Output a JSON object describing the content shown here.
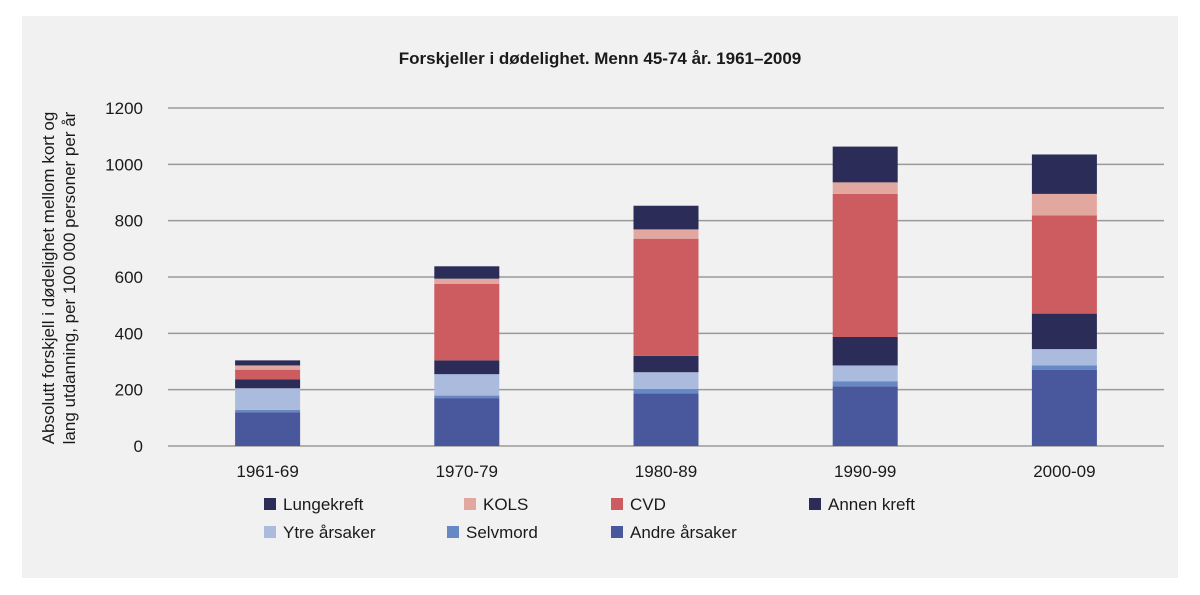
{
  "chart_data": {
    "type": "bar",
    "stacked": true,
    "title": "Forskjeller i dødelighet. Menn 45-74 år. 1961–2009",
    "xlabel": "",
    "ylabel_lines": [
      "Absolutt forskjell i dødelighet mellom kort og",
      "lang utdanning, per 100 000 personer per år"
    ],
    "ylim": [
      0,
      1200
    ],
    "yticks": [
      "0",
      "200",
      "400",
      "600",
      "800",
      "1000",
      "1200"
    ],
    "grid": true,
    "legend_position": "bottom",
    "categories": [
      "1961-69",
      "1970-79",
      "1980-89",
      "1990-99",
      "2000-09"
    ],
    "series": [
      {
        "name": "Andre årsaker",
        "color": "#49579c",
        "values": [
          120,
          170,
          187,
          212,
          270
        ]
      },
      {
        "name": "Selvmord",
        "color": "#6688c4",
        "values": [
          8,
          9,
          16,
          18,
          16
        ]
      },
      {
        "name": "Ytre årsaker",
        "color": "#aabbdd",
        "values": [
          77,
          76,
          59,
          56,
          58
        ]
      },
      {
        "name": "Annen kreft",
        "color": "#2b2d58",
        "values": [
          32,
          49,
          58,
          101,
          126
        ]
      },
      {
        "name": "CVD",
        "color": "#cd5c60",
        "values": [
          34,
          272,
          416,
          508,
          349
        ]
      },
      {
        "name": "KOLS",
        "color": "#e2a8a0",
        "values": [
          15,
          18,
          33,
          41,
          76
        ]
      },
      {
        "name": "Lungekreft",
        "color": "#2b2d58",
        "values": [
          18,
          44,
          84,
          127,
          140
        ]
      }
    ],
    "legend_order": [
      "Lungekreft",
      "KOLS",
      "CVD",
      "Annen kreft",
      "Ytre årsaker",
      "Selvmord",
      "Andre årsaker"
    ]
  }
}
